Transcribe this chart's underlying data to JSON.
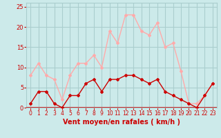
{
  "x": [
    0,
    1,
    2,
    3,
    4,
    5,
    6,
    7,
    8,
    9,
    10,
    11,
    12,
    13,
    14,
    15,
    16,
    17,
    18,
    19,
    20,
    21,
    22,
    23
  ],
  "wind_avg": [
    1,
    4,
    4,
    1,
    0,
    3,
    3,
    6,
    7,
    4,
    7,
    7,
    8,
    8,
    7,
    6,
    7,
    4,
    3,
    2,
    1,
    0,
    3,
    6
  ],
  "wind_gust": [
    8,
    11,
    8,
    7,
    2,
    8,
    11,
    11,
    13,
    10,
    19,
    16,
    23,
    23,
    19,
    18,
    21,
    15,
    16,
    9,
    1,
    1,
    3,
    6
  ],
  "xlabel": "Vent moyen/en rafales ( km/h )",
  "ylim": [
    0,
    26
  ],
  "xlim": [
    -0.5,
    23.5
  ],
  "yticks": [
    0,
    5,
    10,
    15,
    20,
    25
  ],
  "xticks": [
    0,
    1,
    2,
    3,
    4,
    5,
    6,
    7,
    8,
    9,
    10,
    11,
    12,
    13,
    14,
    15,
    16,
    17,
    18,
    19,
    20,
    21,
    22,
    23
  ],
  "bg_color": "#cceaea",
  "grid_color": "#aacece",
  "avg_color": "#cc0000",
  "gust_color": "#ffaaaa",
  "xlabel_color": "#cc0000",
  "tick_color": "#cc0000",
  "spine_color": "#aaaaaa"
}
